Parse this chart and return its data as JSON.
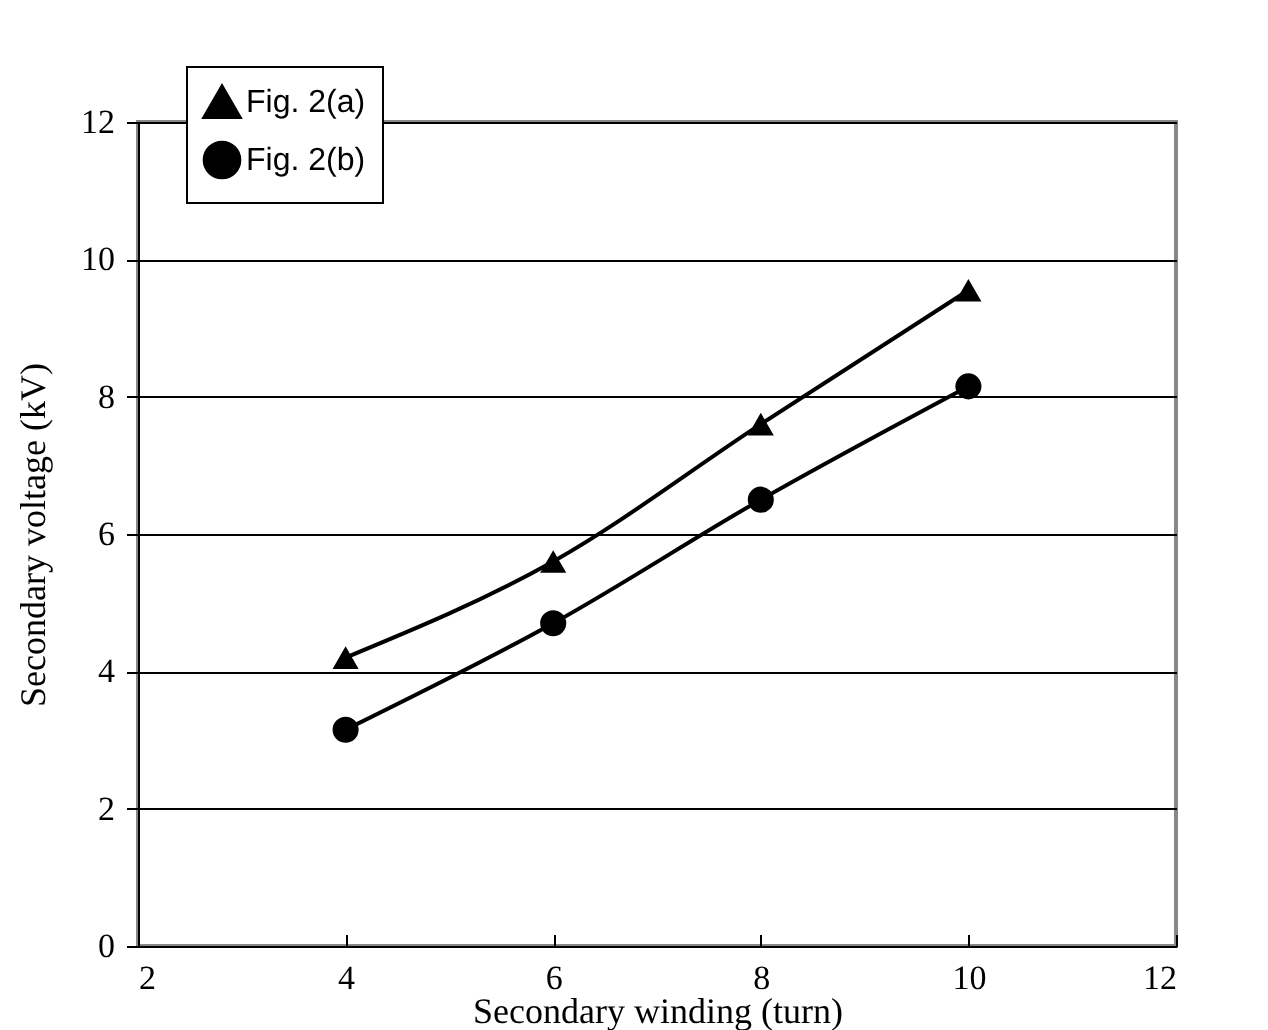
{
  "chart_data": {
    "type": "line",
    "xlabel": "Secondary winding (turn)",
    "ylabel": "Secondary voltage (kV)",
    "x": [
      4,
      6,
      8,
      10
    ],
    "series": [
      {
        "name": "Fig. 2(a)",
        "color": "#000000",
        "marker": "triangle",
        "values": [
          4.2,
          5.6,
          7.6,
          9.55
        ]
      },
      {
        "name": "Fig. 2(b)",
        "color": "#000000",
        "marker": "circle",
        "values": [
          3.15,
          4.7,
          6.5,
          8.15
        ]
      }
    ],
    "xlim": [
      2,
      12
    ],
    "xticks": [
      2,
      4,
      6,
      8,
      10,
      12
    ],
    "ylim": [
      0,
      12
    ],
    "yticks": [
      0,
      2,
      4,
      6,
      8,
      10,
      12
    ],
    "grid": "y",
    "legend": "top left",
    "line_style": "solid"
  }
}
